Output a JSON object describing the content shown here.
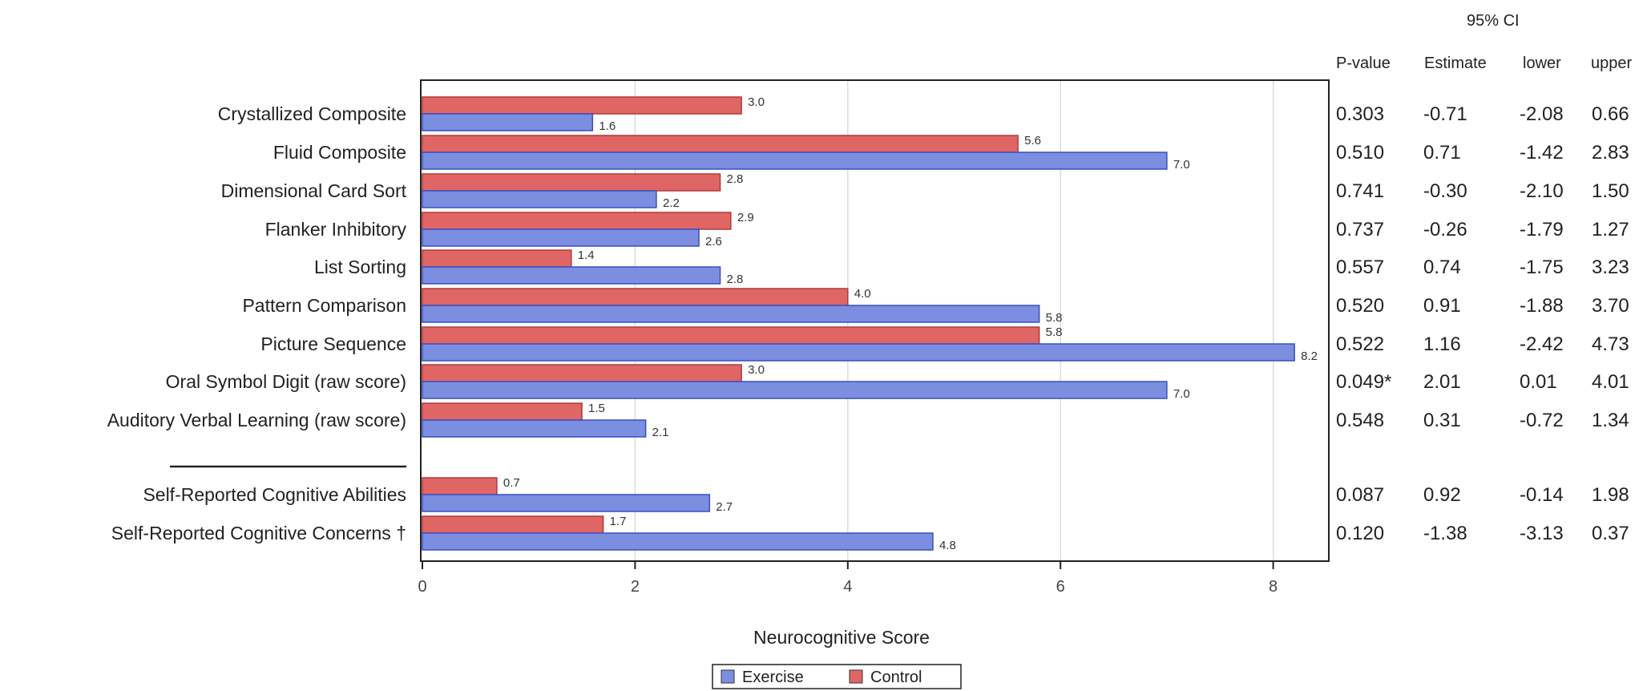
{
  "chart_data": {
    "type": "bar",
    "orientation": "horizontal",
    "xlabel": "Neurocognitive Score",
    "xlim": [
      0,
      10.5
    ],
    "x_ticks": [
      "0",
      "2",
      "4",
      "6",
      "8"
    ],
    "grid": "vertical",
    "legend_position": "bottom-center",
    "categories": [
      "Crystallized Composite",
      "Fluid Composite",
      "Dimensional Card Sort",
      "Flanker Inhibitory",
      "List Sorting",
      "Pattern Comparison",
      "Picture Sequence",
      "Oral Symbol Digit (raw score)",
      "Auditory Verbal Learning (raw score)",
      "Self-Reported Cognitive Abilities",
      "Self-Reported Cognitive Concerns †"
    ],
    "series": [
      {
        "name": "Control",
        "color": "#e06666",
        "stroke": "#b03a3a",
        "values": [
          3.0,
          5.6,
          2.8,
          2.9,
          1.4,
          4.0,
          5.8,
          3.0,
          1.5,
          0.7,
          1.7
        ],
        "labels": [
          "3.0",
          "5.6",
          "2.8",
          "2.9",
          "1.4",
          "4.0",
          "5.8",
          "3.0",
          "1.5",
          "0.7",
          "1.7"
        ]
      },
      {
        "name": "Exercise",
        "color": "#7b8ee0",
        "stroke": "#3a4fc0",
        "values": [
          1.6,
          7.0,
          2.2,
          2.6,
          2.8,
          5.8,
          8.2,
          7.0,
          2.1,
          2.7,
          4.8
        ],
        "labels": [
          "1.6",
          "7.0",
          "2.2",
          "2.6",
          "2.8",
          "5.8",
          "8.2",
          "7.0",
          "2.1",
          "2.7",
          "4.8"
        ]
      }
    ],
    "stats_table": {
      "group_header": "95% CI",
      "group_header_suffix": ".",
      "columns": [
        "P-value",
        "Estimate",
        "lower",
        "upper"
      ],
      "rows": [
        [
          "0.303",
          "-0.71",
          "-2.08",
          "0.66"
        ],
        [
          "0.510",
          "0.71",
          "-1.42",
          "2.83"
        ],
        [
          "0.741",
          "-0.30",
          "-2.10",
          "1.50"
        ],
        [
          "0.737",
          "-0.26",
          "-1.79",
          "1.27"
        ],
        [
          "0.557",
          "0.74",
          "-1.75",
          "3.23"
        ],
        [
          "0.520",
          "0.91",
          "-1.88",
          "3.70"
        ],
        [
          "0.522",
          "1.16",
          "-2.42",
          "4.73"
        ],
        [
          "0.049*",
          "2.01",
          "0.01",
          "4.01"
        ],
        [
          "0.548",
          "0.31",
          "-0.72",
          "1.34"
        ],
        [
          "0.087",
          "0.92",
          "-0.14",
          "1.98"
        ],
        [
          "0.120",
          "-1.38",
          "-3.13",
          "0.37"
        ]
      ]
    },
    "legend": [
      {
        "name": "Exercise",
        "color": "#7b8ee0"
      },
      {
        "name": "Control",
        "color": "#e06666"
      }
    ]
  }
}
